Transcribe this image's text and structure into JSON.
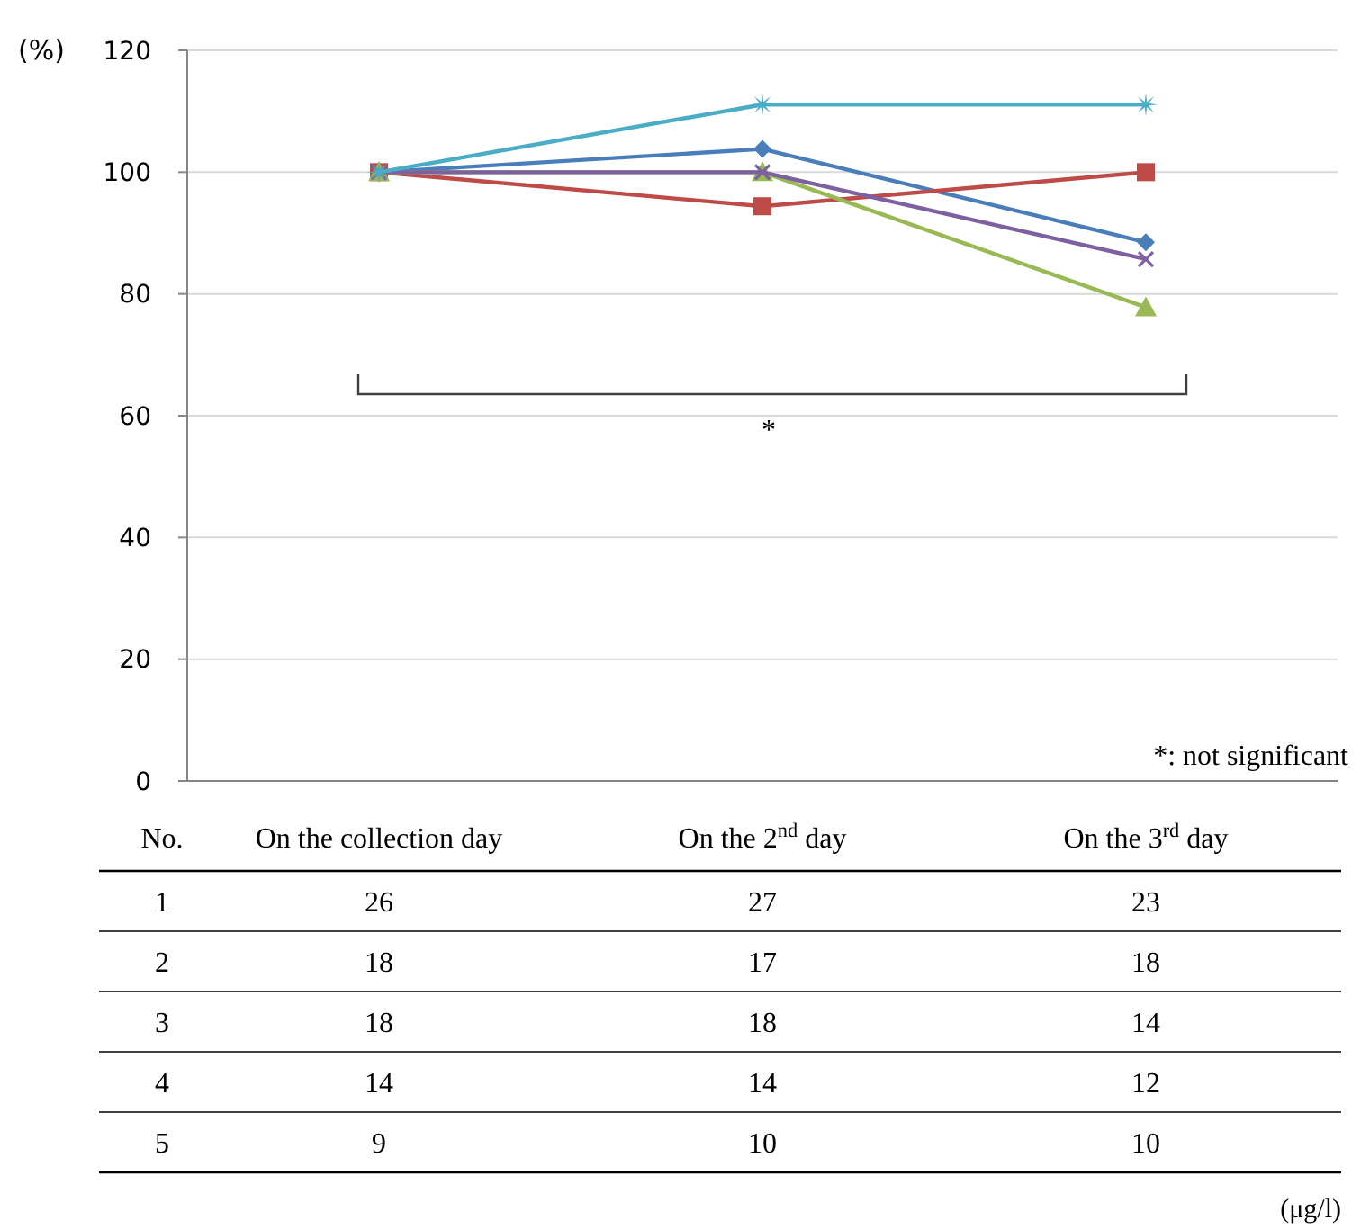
{
  "chart_data": [
    {
      "type": "line",
      "ylabel": "(%)",
      "categories": [
        "On the collection day",
        "On the 2$^{nd}$ day",
        "On the 3$^{rd}$ day"
      ],
      "ylim": [
        0,
        120
      ],
      "yticks": [
        0,
        20,
        40,
        60,
        80,
        100,
        120
      ],
      "grid": "y",
      "legend": false,
      "annotations": [
        "*",
        "*: not significant"
      ],
      "series": [
        {
          "color": "#4a7ebb",
          "marker": "diamond",
          "values": [
            100,
            103.8,
            88.5
          ]
        },
        {
          "color": "#be4b48",
          "marker": "square",
          "values": [
            100,
            94.4,
            100
          ]
        },
        {
          "color": "#98b954",
          "marker": "triangle",
          "values": [
            100,
            100,
            77.8
          ]
        },
        {
          "color": "#7d60a0",
          "marker": "cross",
          "values": [
            100,
            100,
            85.7
          ]
        },
        {
          "color": "#4bacc6",
          "marker": "star",
          "values": [
            100,
            111.1,
            111.1
          ]
        }
      ]
    },
    {
      "type": "heatmap",
      "ylabel": "No.",
      "data_labels": true,
      "categories": [
        null,
        null,
        null
      ],
      "y_categories": [
        "1",
        "2",
        "3",
        "4",
        "5"
      ],
      "cells": [
        [
          26,
          27,
          23
        ],
        [
          18,
          17,
          18
        ],
        [
          18,
          18,
          14
        ],
        [
          14,
          14,
          12
        ],
        [
          9,
          10,
          10
        ]
      ],
      "annotations": [
        "(μg/l)"
      ]
    }
  ]
}
